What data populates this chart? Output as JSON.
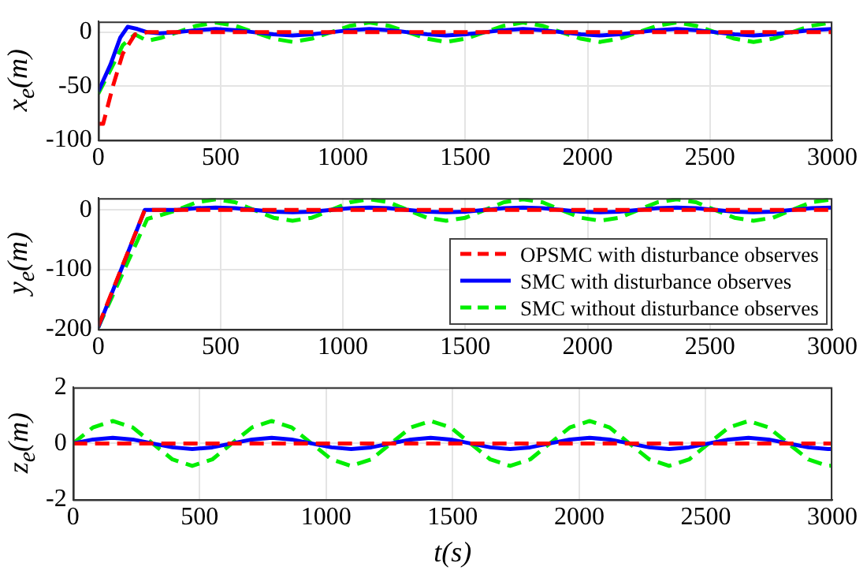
{
  "chart_data": [
    {
      "type": "line",
      "ylabel": "x$_{e}$(m)",
      "xlim": [
        0,
        3000
      ],
      "xticks": [
        0,
        500,
        1000,
        1500,
        2000,
        2500,
        3000
      ],
      "ylim": [
        -100,
        10
      ],
      "yticks": [
        -100,
        -50,
        0
      ],
      "grid": true,
      "marker": "none",
      "series": [
        {
          "color": "#ff0000",
          "line_style": "dashed",
          "x": [
            0,
            20,
            60,
            100,
            150,
            200,
            3000
          ],
          "values": [
            -85,
            -85,
            -50,
            -20,
            -2,
            0,
            0
          ]
        },
        {
          "color": "#0000ff",
          "line_style": "solid",
          "x": [
            0,
            50,
            90,
            120,
            160,
            200,
            250,
            323,
            402,
            480,
            559,
            637,
            716,
            794,
            873,
            951,
            1030,
            1108,
            1187,
            1265,
            1344,
            1422,
            1501,
            1579,
            1658,
            1736,
            1815,
            1893,
            1972,
            2050,
            2129,
            2207,
            2286,
            2364,
            2443,
            2521,
            2600,
            2678,
            2757,
            2835,
            2914,
            3000
          ],
          "values": [
            -55,
            -30,
            -5,
            5,
            3,
            0,
            -1,
            0,
            2,
            3,
            2,
            0,
            -2,
            -3,
            -2,
            0,
            2,
            3,
            2,
            0,
            -2,
            -3,
            -2,
            0,
            2,
            3,
            2,
            0,
            -2,
            -3,
            -2,
            0,
            2,
            3,
            2,
            0,
            -2,
            -3,
            -2,
            0,
            2,
            3
          ]
        },
        {
          "color": "#00ee00",
          "line_style": "dashed",
          "x": [
            0,
            50,
            100,
            150,
            200,
            260,
            323,
            402,
            480,
            559,
            637,
            716,
            794,
            873,
            951,
            1030,
            1108,
            1187,
            1265,
            1344,
            1422,
            1501,
            1579,
            1658,
            1736,
            1815,
            1893,
            1972,
            2050,
            2129,
            2207,
            2286,
            2364,
            2443,
            2521,
            2600,
            2678,
            2757,
            2835,
            2914,
            3000
          ],
          "values": [
            -57,
            -35,
            -12,
            -2,
            -8,
            -5,
            0,
            6,
            9,
            6,
            0,
            -6,
            -9,
            -6,
            0,
            6,
            9,
            6,
            0,
            -6,
            -9,
            -6,
            0,
            6,
            9,
            6,
            0,
            -6,
            -9,
            -6,
            0,
            6,
            9,
            6,
            0,
            -6,
            -9,
            -6,
            0,
            6,
            9
          ]
        }
      ]
    },
    {
      "type": "line",
      "ylabel": "y$_{e}$(m)",
      "xlim": [
        0,
        3000
      ],
      "xticks": [
        0,
        500,
        1000,
        1500,
        2000,
        2500,
        3000
      ],
      "ylim": [
        -200,
        20
      ],
      "yticks": [
        -200,
        -100,
        0
      ],
      "grid": true,
      "marker": "none",
      "legend": "bottom right",
      "series": [
        {
          "name": "OPSMC with disturbance observes",
          "color": "#ff0000",
          "line_style": "dashed",
          "x": [
            0,
            190,
            3000
          ],
          "values": [
            -195,
            0,
            0
          ]
        },
        {
          "name": "SMC with disturbance observes",
          "color": "#0000ff",
          "line_style": "solid",
          "x": [
            0,
            190,
            250,
            323,
            402,
            480,
            559,
            637,
            716,
            794,
            873,
            951,
            1030,
            1108,
            1187,
            1265,
            1344,
            1422,
            1501,
            1579,
            1658,
            1736,
            1815,
            1893,
            1972,
            2050,
            2129,
            2207,
            2286,
            2364,
            2443,
            2521,
            2600,
            2678,
            2757,
            2835,
            2914,
            3000
          ],
          "values": [
            -197,
            0,
            0,
            0,
            3,
            4,
            3,
            0,
            -3,
            -4,
            -3,
            0,
            3,
            4,
            3,
            0,
            -3,
            -4,
            -3,
            0,
            3,
            4,
            3,
            0,
            -3,
            -4,
            -3,
            0,
            3,
            4,
            3,
            0,
            -3,
            -4,
            -3,
            0,
            3,
            4
          ]
        },
        {
          "name": "SMC without disturbance observes",
          "color": "#00ee00",
          "line_style": "dashed",
          "x": [
            0,
            200,
            260,
            323,
            402,
            480,
            559,
            637,
            716,
            794,
            873,
            951,
            1030,
            1108,
            1187,
            1265,
            1344,
            1422,
            1501,
            1579,
            1658,
            1736,
            1815,
            1893,
            1972,
            2050,
            2129,
            2207,
            2286,
            2364,
            2443,
            2521,
            2600,
            2678,
            2757,
            2835,
            2914,
            3000
          ],
          "values": [
            -197,
            -15,
            -8,
            0,
            13,
            18,
            13,
            0,
            -13,
            -18,
            -13,
            0,
            13,
            18,
            13,
            0,
            -13,
            -18,
            -13,
            0,
            13,
            18,
            13,
            0,
            -13,
            -18,
            -13,
            0,
            13,
            18,
            13,
            0,
            -13,
            -18,
            -13,
            0,
            13,
            18
          ]
        }
      ]
    },
    {
      "type": "line",
      "ylabel": "z$_{e}$(m)",
      "xlabel": "t(s)",
      "xlim": [
        0,
        3000
      ],
      "xticks": [
        0,
        500,
        1000,
        1500,
        2000,
        2500,
        3000
      ],
      "ylim": [
        -2,
        2
      ],
      "yticks": [
        -2,
        0,
        2
      ],
      "grid": true,
      "marker": "none",
      "series": [
        {
          "color": "#ff0000",
          "line_style": "dashed",
          "x": [
            0,
            3000
          ],
          "values": [
            0,
            0
          ]
        },
        {
          "color": "#0000ff",
          "line_style": "solid",
          "x": [
            0,
            79,
            157,
            236,
            314,
            393,
            471,
            550,
            628,
            707,
            785,
            864,
            942,
            1021,
            1099,
            1178,
            1256,
            1335,
            1413,
            1492,
            1570,
            1649,
            1727,
            1806,
            1884,
            1963,
            2041,
            2120,
            2198,
            2277,
            2355,
            2434,
            2512,
            2591,
            2669,
            2748,
            2826,
            2905,
            2983,
            3000
          ],
          "values": [
            0,
            0.14,
            0.2,
            0.14,
            0,
            -0.14,
            -0.2,
            -0.14,
            0,
            0.14,
            0.2,
            0.14,
            0,
            -0.14,
            -0.2,
            -0.14,
            0,
            0.14,
            0.2,
            0.14,
            0,
            -0.14,
            -0.2,
            -0.14,
            0,
            0.14,
            0.2,
            0.14,
            0,
            -0.14,
            -0.2,
            -0.14,
            0,
            0.14,
            0.2,
            0.14,
            0,
            -0.14,
            -0.2,
            -0.2
          ]
        },
        {
          "color": "#00ee00",
          "line_style": "dashed",
          "x": [
            0,
            79,
            157,
            236,
            314,
            393,
            471,
            550,
            628,
            707,
            785,
            864,
            942,
            1021,
            1099,
            1178,
            1256,
            1335,
            1413,
            1492,
            1570,
            1649,
            1727,
            1806,
            1884,
            1963,
            2041,
            2120,
            2198,
            2277,
            2355,
            2434,
            2512,
            2591,
            2669,
            2748,
            2826,
            2905,
            2983,
            3000
          ],
          "values": [
            0,
            0.57,
            0.8,
            0.57,
            0,
            -0.57,
            -0.8,
            -0.57,
            0,
            0.57,
            0.8,
            0.57,
            0,
            -0.57,
            -0.8,
            -0.57,
            0,
            0.57,
            0.8,
            0.57,
            0,
            -0.57,
            -0.8,
            -0.57,
            0,
            0.57,
            0.8,
            0.57,
            0,
            -0.57,
            -0.8,
            -0.57,
            0,
            0.57,
            0.8,
            0.57,
            0,
            -0.57,
            -0.8,
            -0.79
          ]
        }
      ]
    }
  ]
}
